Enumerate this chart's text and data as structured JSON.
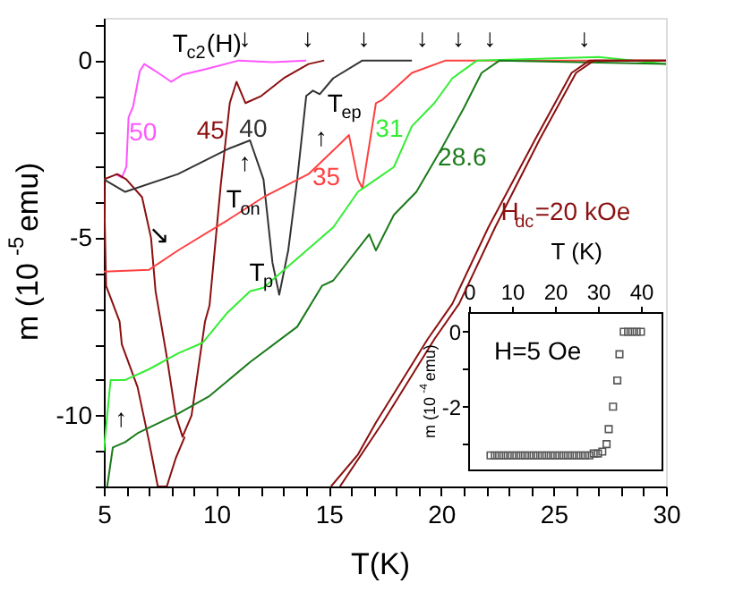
{
  "chart_data": [
    {
      "type": "line",
      "xlabel": "T(K)",
      "ylabel": "m (10$^{-5}$emu)",
      "xlim": [
        5,
        30
      ],
      "ylim": [
        -12,
        1.2
      ],
      "xticks": [
        5,
        {
          "value": 6,
          "label": null
        },
        {
          "value": 7,
          "label": null
        },
        {
          "value": 8,
          "label": null
        },
        {
          "value": 9,
          "label": null
        },
        10,
        {
          "value": 11,
          "label": null
        },
        {
          "value": 12,
          "label": null
        },
        {
          "value": 13,
          "label": null
        },
        {
          "value": 14,
          "label": null
        },
        15,
        {
          "value": 16,
          "label": null
        },
        {
          "value": 17,
          "label": null
        },
        {
          "value": 18,
          "label": null
        },
        {
          "value": 19,
          "label": null
        },
        20,
        {
          "value": 21,
          "label": null
        },
        {
          "value": 22,
          "label": null
        },
        {
          "value": 23,
          "label": null
        },
        {
          "value": 24,
          "label": null
        },
        25,
        {
          "value": 26,
          "label": null
        },
        {
          "value": 27,
          "label": null
        },
        {
          "value": 28,
          "label": null
        },
        {
          "value": 29,
          "label": null
        },
        30
      ],
      "yticks": [
        {
          "value": -12,
          "label": null
        },
        {
          "value": -11,
          "label": null
        },
        -10,
        {
          "value": -9,
          "label": null
        },
        {
          "value": -8,
          "label": null
        },
        {
          "value": -7,
          "label": null
        },
        {
          "value": -6,
          "label": null
        },
        -5,
        {
          "value": -4,
          "label": null
        },
        {
          "value": -3,
          "label": null
        },
        {
          "value": -2,
          "label": null
        },
        {
          "value": -1,
          "label": null
        },
        0,
        {
          "value": 1,
          "label": null
        }
      ],
      "grid": false,
      "legend": false,
      "series": [
        {
          "name": "50",
          "color": "#ff55ff",
          "x": [
            5.5,
            5.8,
            6.0,
            6.1,
            6.3,
            6.6,
            6.8,
            7.3,
            8.0,
            8.5,
            9.5,
            11,
            12.5,
            14
          ],
          "values": [
            -3.2,
            -3.3,
            -3.0,
            -1.6,
            -1.3,
            -0.3,
            -0.1,
            -0.3,
            -0.6,
            -0.4,
            -0.25,
            0,
            -0.05,
            0
          ]
        },
        {
          "name": "45",
          "color": "#8b1010",
          "x": [
            5.0,
            5.6,
            6.0,
            6.7,
            7.1,
            7.3,
            7.8,
            8.2,
            8.5,
            8.9,
            9.5,
            9.7,
            10.2,
            10.6,
            10.9,
            11.3,
            12,
            13,
            14.1,
            14.8
          ],
          "values": [
            -3.35,
            -3.2,
            -3.35,
            -3.85,
            -5,
            -6.5,
            -8.35,
            -10,
            -10.6,
            -10,
            -7.35,
            -6.9,
            -3.5,
            -1.2,
            -0.6,
            -1.2,
            -1.0,
            -0.5,
            -0.1,
            0
          ]
        },
        {
          "color": "#8b1010",
          "x": [
            5.0,
            5.1,
            5.7,
            5.8,
            6.5,
            7.0,
            7.4,
            7.8,
            8.2,
            8.6
          ],
          "values": [
            -3.3,
            -6.35,
            -7.35,
            -8,
            -9.2,
            -10.7,
            -12,
            -12,
            -11.2,
            -10.6
          ]
        },
        {
          "name": "40",
          "color": "#333333",
          "x": [
            5,
            5.95,
            8.3,
            10.5,
            11.5,
            12.1,
            12.5,
            12.8,
            13.2,
            13.6,
            14.0,
            14.3,
            14.6,
            15.2,
            16.5,
            18.7
          ],
          "values": [
            -3.35,
            -3.7,
            -3.2,
            -2.5,
            -2.25,
            -3.35,
            -5.7,
            -6.6,
            -5.35,
            -3.35,
            -1.0,
            -0.85,
            -0.95,
            -0.5,
            0,
            0
          ]
        },
        {
          "name": "35",
          "color": "#ff4040",
          "x": [
            5,
            7.0,
            8.3,
            10.5,
            12.1,
            14.1,
            15.5,
            15.9,
            16.3,
            16.5,
            17.1,
            17.4,
            18.7,
            20.2,
            25,
            30
          ],
          "values": [
            -5.95,
            -5.9,
            -5.35,
            -4.5,
            -3.85,
            -3.2,
            -2.35,
            -2.1,
            -3.35,
            -3.6,
            -1.2,
            -1.1,
            -0.35,
            0,
            0,
            0
          ]
        },
        {
          "name": "31",
          "color": "#33ee33",
          "x": [
            5,
            5.3,
            5.95,
            7.0,
            8.3,
            9.4,
            10.5,
            11.5,
            12.1,
            15.2,
            16.3,
            17.1,
            17.9,
            18.7,
            19.7,
            20.5,
            21.6,
            27,
            30
          ],
          "values": [
            -11,
            -9,
            -9.0,
            -8.7,
            -8.25,
            -7.95,
            -7.1,
            -6.5,
            -6.4,
            -4.7,
            -3.7,
            -3.35,
            -3.0,
            -1.85,
            -1.2,
            -0.5,
            0,
            0.1,
            -0.1
          ]
        },
        {
          "name": "28.6",
          "color": "#1a7a1a",
          "x": [
            5.15,
            5.4,
            5.95,
            6.5,
            8.3,
            9.7,
            11.5,
            13.6,
            14.7,
            15.2,
            16.8,
            17.1,
            17.9,
            18.9,
            20.0,
            21.0,
            21.8,
            22.6,
            30
          ],
          "values": [
            -12,
            -10.9,
            -10.75,
            -10.5,
            -9.95,
            -9.45,
            -8.5,
            -7.5,
            -6.35,
            -6.2,
            -4.9,
            -5.35,
            -4.35,
            -3.7,
            -2.5,
            -1.35,
            -0.35,
            0,
            -0.1
          ]
        },
        {
          "name": "H$_{dc}$=20 kOe",
          "color": "#8b1010",
          "x": [
            15.1,
            16.3,
            17.1,
            19.4,
            20.5,
            22.1,
            24.2,
            25.8,
            26.6,
            30
          ],
          "values": [
            -12,
            -11.1,
            -10.2,
            -7.85,
            -6.85,
            -4.7,
            -2.2,
            -0.35,
            0,
            0
          ]
        },
        {
          "color": "#8b1010",
          "x": [
            15.5,
            17.4,
            19.7,
            20.8,
            22.4,
            24.4,
            26.0,
            26.8,
            30
          ],
          "values": [
            -12,
            -10.2,
            -7.85,
            -6.85,
            -4.7,
            -2.2,
            -0.35,
            0,
            0
          ]
        }
      ],
      "annotations": [
        "T$_{c2}$(H)",
        "T$_{ep}$",
        "T$_{on}$",
        "T$_{p}$",
        "↓",
        "↓",
        "↓",
        "↓",
        "↓",
        "↓",
        "↓",
        "↑",
        "↑",
        "↑",
        "↘"
      ]
    },
    {
      "type": "scatter",
      "marker": "square",
      "xlabel": "T (K)",
      "ylabel": "m (10$^{-4}$emu)",
      "xlim": [
        0,
        45
      ],
      "ylim": [
        -3.7,
        0.5
      ],
      "xticks": [
        0,
        10,
        20,
        30,
        40
      ],
      "yticks": [
        0,
        {
          "value": -1,
          "label": null
        },
        -2,
        {
          "value": -3,
          "label": null
        }
      ],
      "grid": false,
      "legend": false,
      "series": [
        {
          "color": "#555555",
          "x": [
            5,
            6,
            7,
            8,
            9,
            10,
            11,
            12,
            13,
            14,
            15,
            16,
            17,
            18,
            19,
            20,
            21,
            22,
            23,
            24,
            25,
            26,
            27,
            28,
            29,
            30,
            31,
            32,
            32.5,
            33.5,
            34.5,
            35,
            36,
            37,
            38,
            39,
            40
          ],
          "values": [
            -3.3,
            -3.3,
            -3.3,
            -3.3,
            -3.3,
            -3.3,
            -3.3,
            -3.3,
            -3.3,
            -3.3,
            -3.3,
            -3.3,
            -3.3,
            -3.3,
            -3.3,
            -3.3,
            -3.3,
            -3.3,
            -3.3,
            -3.3,
            -3.3,
            -3.3,
            -3.3,
            -3.3,
            -3.25,
            -3.25,
            -3.2,
            -3.0,
            -2.6,
            -2.0,
            -1.3,
            -0.6,
            0,
            0,
            0,
            0,
            0
          ]
        }
      ],
      "annotations": [
        "H=5 Oe"
      ]
    }
  ]
}
